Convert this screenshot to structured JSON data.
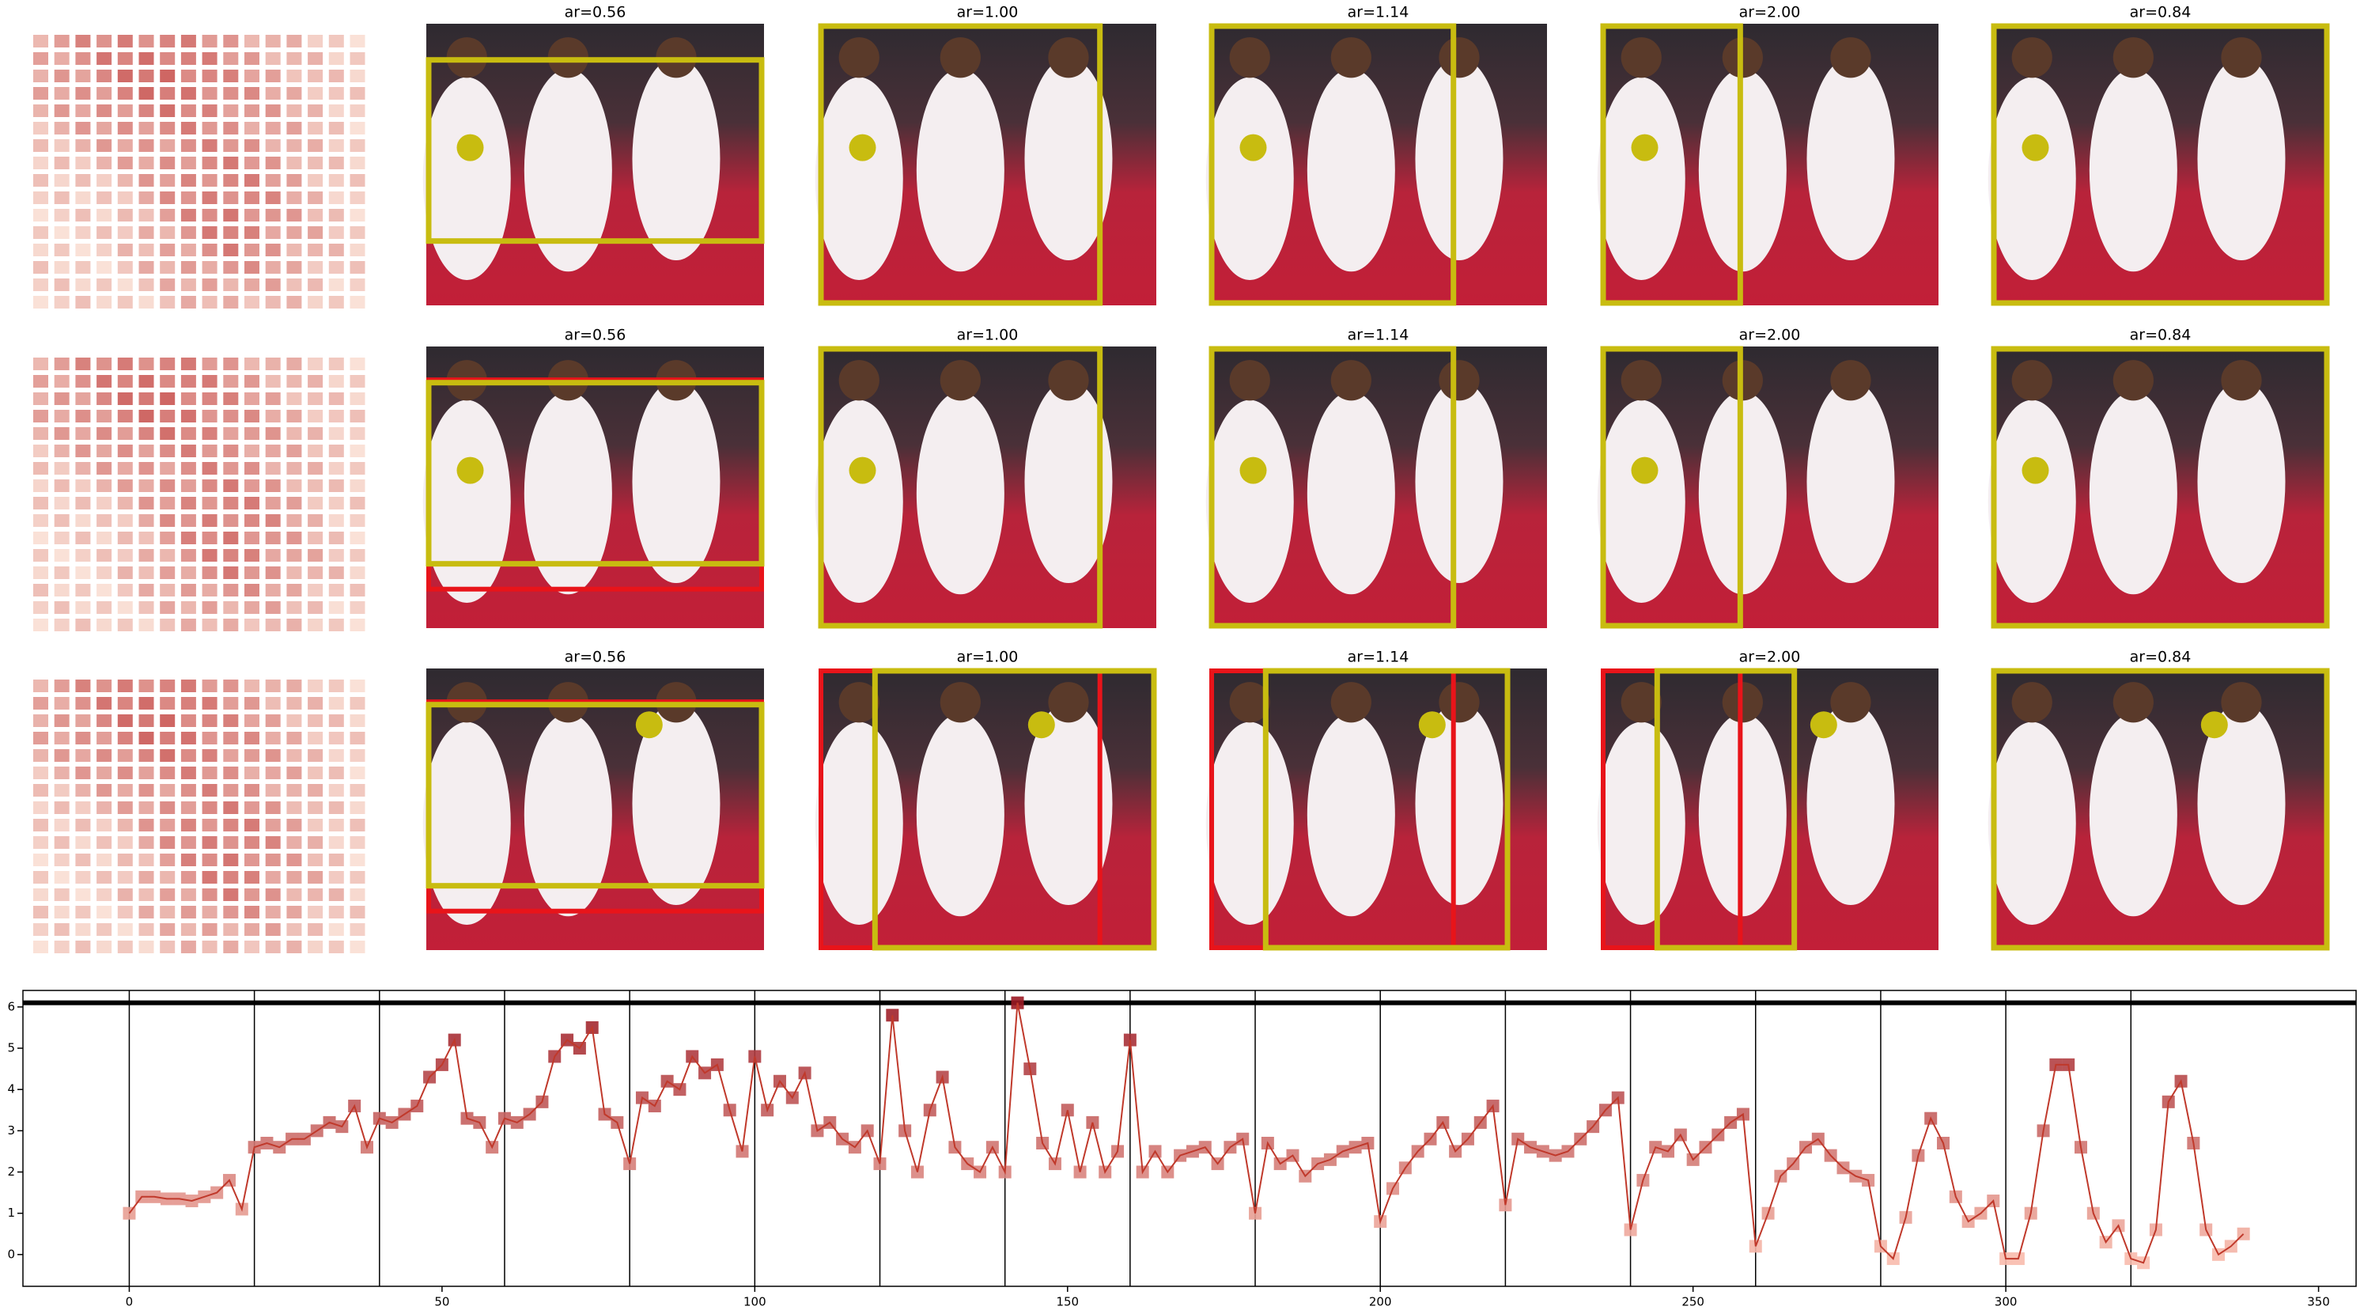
{
  "panel_titles": [
    [
      "ar=0.56",
      "ar=1.00",
      "ar=1.14",
      "ar=2.00",
      "ar=0.84"
    ],
    [
      "ar=0.56",
      "ar=1.00",
      "ar=1.14",
      "ar=2.00",
      "ar=0.84"
    ],
    [
      "ar=0.56",
      "ar=1.00",
      "ar=1.14",
      "ar=2.00",
      "ar=0.84"
    ]
  ],
  "chart_data": {
    "type": "line",
    "color": "#c0392b",
    "x": [
      0,
      2,
      4,
      6,
      8,
      10,
      12,
      14,
      16,
      18,
      20,
      22,
      24,
      26,
      28,
      30,
      32,
      34,
      36,
      38,
      40,
      42,
      44,
      46,
      48,
      50,
      52,
      54,
      56,
      58,
      60,
      62,
      64,
      66,
      68,
      70,
      72,
      74,
      76,
      78,
      80,
      82,
      84,
      86,
      88,
      90,
      92,
      94,
      96,
      98,
      100,
      102,
      104,
      106,
      108,
      110,
      112,
      114,
      116,
      118,
      120,
      122,
      124,
      126,
      128,
      130,
      132,
      134,
      136,
      138,
      140,
      142,
      144,
      146,
      148,
      150,
      152,
      154,
      156,
      158,
      160,
      162,
      164,
      166,
      168,
      170,
      172,
      174,
      176,
      178,
      180,
      182,
      184,
      186,
      188,
      190,
      192,
      194,
      196,
      198,
      200,
      202,
      204,
      206,
      208,
      210,
      212,
      214,
      216,
      218,
      220,
      222,
      224,
      226,
      228,
      230,
      232,
      234,
      236,
      238,
      240,
      242,
      244,
      246,
      248,
      250,
      252,
      254,
      256,
      258,
      260,
      262,
      264,
      266,
      268,
      270,
      272,
      274,
      276,
      278,
      280,
      282,
      284,
      286,
      288,
      290,
      292,
      294,
      296,
      298,
      300,
      302,
      304,
      306,
      308,
      310,
      312,
      314,
      316,
      318,
      320,
      322,
      324,
      326,
      328,
      330,
      332,
      334,
      336,
      338
    ],
    "values": [
      1.0,
      1.4,
      1.4,
      1.35,
      1.35,
      1.3,
      1.4,
      1.5,
      1.8,
      1.1,
      2.6,
      2.7,
      2.6,
      2.8,
      2.8,
      3.0,
      3.2,
      3.1,
      3.6,
      2.6,
      3.3,
      3.2,
      3.4,
      3.6,
      4.3,
      4.6,
      5.2,
      3.3,
      3.2,
      2.6,
      3.3,
      3.2,
      3.4,
      3.7,
      4.8,
      5.2,
      5.0,
      5.5,
      3.4,
      3.2,
      2.2,
      3.8,
      3.6,
      4.2,
      4.0,
      4.8,
      4.4,
      4.6,
      3.5,
      2.5,
      4.8,
      3.5,
      4.2,
      3.8,
      4.4,
      3.0,
      3.2,
      2.8,
      2.6,
      3.0,
      2.2,
      5.8,
      3.0,
      2.0,
      3.5,
      4.3,
      2.6,
      2.2,
      2.0,
      2.6,
      2.0,
      6.1,
      4.5,
      2.7,
      2.2,
      3.5,
      2.0,
      3.2,
      2.0,
      2.5,
      5.2,
      2.0,
      2.5,
      2.0,
      2.4,
      2.5,
      2.6,
      2.2,
      2.6,
      2.8,
      1.0,
      2.7,
      2.2,
      2.4,
      1.9,
      2.2,
      2.3,
      2.5,
      2.6,
      2.7,
      0.8,
      1.6,
      2.1,
      2.5,
      2.8,
      3.2,
      2.5,
      2.8,
      3.2,
      3.6,
      1.2,
      2.8,
      2.6,
      2.5,
      2.4,
      2.5,
      2.8,
      3.1,
      3.5,
      3.8,
      0.6,
      1.8,
      2.6,
      2.5,
      2.9,
      2.3,
      2.6,
      2.9,
      3.2,
      3.4,
      0.2,
      1.0,
      1.9,
      2.2,
      2.6,
      2.8,
      2.4,
      2.1,
      1.9,
      1.8,
      0.2,
      -0.1,
      0.9,
      2.4,
      3.3,
      2.7,
      1.4,
      0.8,
      1.0,
      1.3,
      -0.1,
      -0.1,
      1.0,
      3.0,
      4.6,
      4.6,
      2.6,
      1.0,
      0.3,
      0.7,
      -0.1,
      -0.2,
      0.6,
      3.7,
      4.2,
      2.7,
      0.6,
      0.0,
      0.2,
      0.5
    ],
    "xlim": [
      -17,
      356
    ],
    "ylim": [
      -0.77,
      6.4
    ],
    "xticks": [
      0,
      50,
      100,
      150,
      200,
      250,
      300,
      350
    ],
    "yticks": [
      0,
      1,
      2,
      3,
      4,
      5,
      6
    ],
    "hline": 6.1,
    "vlines": [
      0,
      20,
      40,
      60,
      80,
      100,
      120,
      140,
      160,
      180,
      200,
      220,
      240,
      260,
      280,
      300,
      320
    ]
  }
}
